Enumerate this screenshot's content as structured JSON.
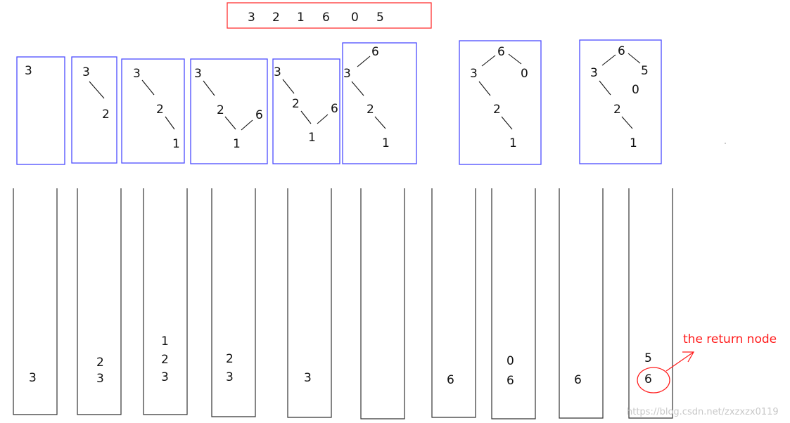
{
  "sequence": [
    "3",
    "2",
    "1",
    "6",
    "0",
    "5"
  ],
  "trees": [
    {
      "nodes": [
        "3"
      ]
    },
    {
      "nodes": [
        "3",
        "2"
      ]
    },
    {
      "nodes": [
        "3",
        "2",
        "1"
      ]
    },
    {
      "nodes": [
        "3",
        "2",
        "6",
        "1"
      ]
    },
    {
      "nodes": [
        "3",
        "2",
        "6",
        "1"
      ]
    },
    {
      "nodes": [
        "6",
        "3",
        "2",
        "1"
      ]
    },
    {
      "nodes": [
        "6",
        "3",
        "0",
        "2",
        "1"
      ]
    },
    {
      "nodes": [
        "6",
        "3",
        "5",
        "0",
        "2",
        "1"
      ]
    }
  ],
  "stacks": [
    {
      "items": [
        "3"
      ]
    },
    {
      "items": [
        "2",
        "3"
      ]
    },
    {
      "items": [
        "1",
        "2",
        "3"
      ]
    },
    {
      "items": [
        "2",
        "3"
      ]
    },
    {
      "items": [
        "3"
      ]
    },
    {
      "items": []
    },
    {
      "items": [
        "6"
      ]
    },
    {
      "items": [
        "0",
        "6"
      ]
    },
    {
      "items": [
        "6"
      ]
    },
    {
      "items": [
        "5",
        "6"
      ]
    }
  ],
  "annotation": {
    "label": "the return node",
    "color": "#ff1a1a"
  },
  "watermark": "https://blog.csdn.net/zxzxzx0119"
}
